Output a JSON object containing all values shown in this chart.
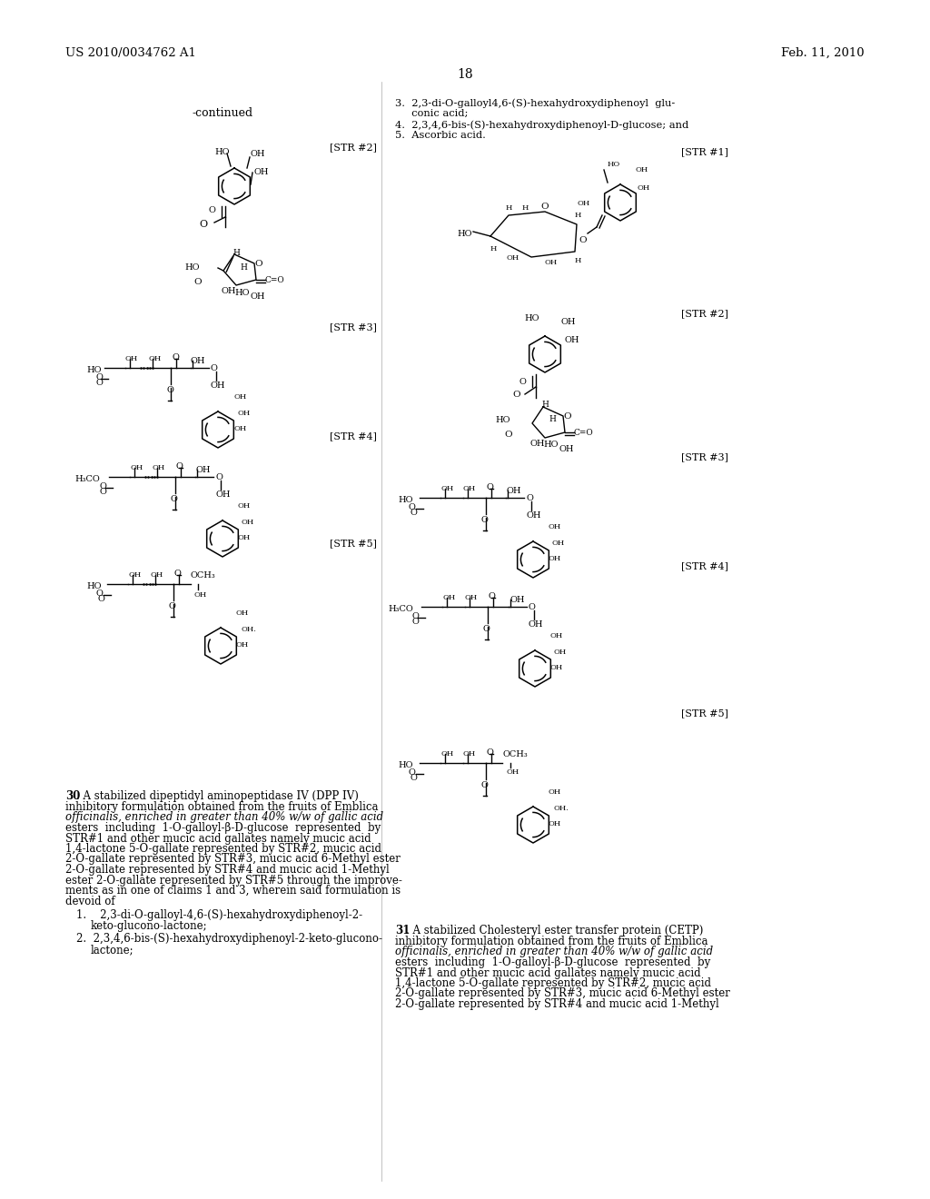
{
  "page_number": "18",
  "header_left": "US 2010/0034762 A1",
  "header_right": "Feb. 11, 2010",
  "background_color": "#ffffff",
  "text_color": "#000000",
  "continued_label": "-continued",
  "str2_label_left": "[STR #2]",
  "str3_label_left": "[STR #3]",
  "str4_label_left": "[STR #4]",
  "str5_label_left": "[STR #5]",
  "str1_label_right": "[STR #1]",
  "str2_label_right": "[STR #2]",
  "str3_label_right": "[STR #3]",
  "str4_label_right": "[STR #4]",
  "str5_label_right": "[STR #5]",
  "right_text_items": [
    "3.  2,3-di-O-galloyl4,6-(S)-hexahydroxydiphenoyl  glu-",
    "     conic acid;",
    "4.  2,3,4,6-bis-(S)-hexahydroxydiphenoyl-D-glucose; and",
    "5.  Ascorbic acid."
  ],
  "para30_bold": "30",
  "para30_text": ". A stabilized dipeptidyl aminopeptidase IV (DPP IV) inhibitory formulation obtained from the fruits of Emblica officinalis, enriched in greater than 40% w/w of gallic acid esters  including  1-O-galloyl-β-D-glucose  represented  by STR#1 and other mucic acid gallates namely mucic acid 1,4-lactone 5-O-gallate represented by STR#2, mucic acid 2-O-gallate represented by STR#3, mucic acid 6-Methyl ester 2-O-gallate represented by STR#4 and mucic acid 1-Methyl ester 2-O-gallate represented by STR#5 through the improvements as in one of claims 1 and 3, wherein said formulation is devoid of",
  "para30_list": [
    "1.    2,3-di-O-galloyl-4,6-(S)-hexahydroxydiphenoyl-2-\n       keto-glucono-lactone;",
    "2.  2,3,4,6-bis-(S)-hexahydroxydiphenoyl-2-keto-glucono-\n       lactone;"
  ],
  "para31_bold": "31",
  "para31_text": ". A stabilized Cholesteryl ester transfer protein (CETP) inhibitory formulation obtained from the fruits of Emblica officinalis, enriched in greater than 40% w/w of gallic acid esters  including  1-O-galloyl-β-D-glucose  represented  by STR#1 and other mucic acid gallates namely mucic acid 1,4-lactone 5-O-gallate represented by STR#2, mucic acid 2-O-gallate represented by STR#3, mucic acid 6-Methyl ester 2-O-gallate represented by STR#4 and mucic acid 1-Methyl"
}
